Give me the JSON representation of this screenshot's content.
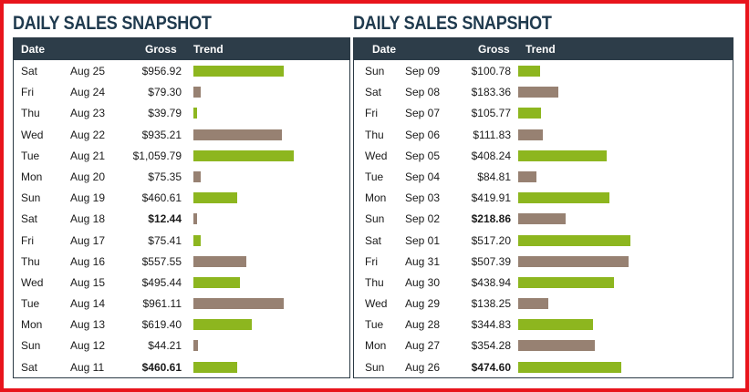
{
  "colors": {
    "increase": "#8db61f",
    "decrease": "#978172",
    "header_bg": "#2d3d49",
    "title": "#1f3a4e",
    "frame": "#e8141c"
  },
  "chart_data": [
    {
      "type": "table",
      "title": "DAILY SALES SNAPSHOT",
      "columns": [
        "Date",
        "Gross",
        "Trend"
      ],
      "rows": [
        {
          "day": "Sat",
          "date": "Aug 25",
          "gross": "$956.92",
          "value": 956.92,
          "trend": "up",
          "bold": false
        },
        {
          "day": "Fri",
          "date": "Aug 24",
          "gross": "$79.30",
          "value": 79.3,
          "trend": "down",
          "bold": false
        },
        {
          "day": "Thu",
          "date": "Aug 23",
          "gross": "$39.79",
          "value": 39.79,
          "trend": "up",
          "bold": false
        },
        {
          "day": "Wed",
          "date": "Aug 22",
          "gross": "$935.21",
          "value": 935.21,
          "trend": "down",
          "bold": false
        },
        {
          "day": "Tue",
          "date": "Aug 21",
          "gross": "$1,059.79",
          "value": 1059.79,
          "trend": "up",
          "bold": false
        },
        {
          "day": "Mon",
          "date": "Aug 20",
          "gross": "$75.35",
          "value": 75.35,
          "trend": "down",
          "bold": false
        },
        {
          "day": "Sun",
          "date": "Aug 19",
          "gross": "$460.61",
          "value": 460.61,
          "trend": "up",
          "bold": false
        },
        {
          "day": "Sat",
          "date": "Aug 18",
          "gross": "$12.44",
          "value": 12.44,
          "trend": "down",
          "bold": true
        },
        {
          "day": "Fri",
          "date": "Aug 17",
          "gross": "$75.41",
          "value": 75.41,
          "trend": "up",
          "bold": false
        },
        {
          "day": "Thu",
          "date": "Aug 16",
          "gross": "$557.55",
          "value": 557.55,
          "trend": "down",
          "bold": false
        },
        {
          "day": "Wed",
          "date": "Aug 15",
          "gross": "$495.44",
          "value": 495.44,
          "trend": "up",
          "bold": false
        },
        {
          "day": "Tue",
          "date": "Aug 14",
          "gross": "$961.11",
          "value": 961.11,
          "trend": "down",
          "bold": false
        },
        {
          "day": "Mon",
          "date": "Aug 13",
          "gross": "$619.40",
          "value": 619.4,
          "trend": "up",
          "bold": false
        },
        {
          "day": "Sun",
          "date": "Aug 12",
          "gross": "$44.21",
          "value": 44.21,
          "trend": "down",
          "bold": false
        },
        {
          "day": "Sat",
          "date": "Aug 11",
          "gross": "$460.61",
          "value": 460.61,
          "trend": "up",
          "bold": true
        }
      ]
    },
    {
      "type": "table",
      "title": "DAILY SALES SNAPSHOT",
      "columns": [
        "Date",
        "Gross",
        "Trend"
      ],
      "rows": [
        {
          "day": "Sun",
          "date": "Sep 09",
          "gross": "$100.78",
          "value": 100.78,
          "trend": "up",
          "bold": false
        },
        {
          "day": "Sat",
          "date": "Sep 08",
          "gross": "$183.36",
          "value": 183.36,
          "trend": "down",
          "bold": false
        },
        {
          "day": "Fri",
          "date": "Sep 07",
          "gross": "$105.77",
          "value": 105.77,
          "trend": "up",
          "bold": false
        },
        {
          "day": "Thu",
          "date": "Sep 06",
          "gross": "$111.83",
          "value": 111.83,
          "trend": "down",
          "bold": false
        },
        {
          "day": "Wed",
          "date": "Sep 05",
          "gross": "$408.24",
          "value": 408.24,
          "trend": "up",
          "bold": false
        },
        {
          "day": "Tue",
          "date": "Sep 04",
          "gross": "$84.81",
          "value": 84.81,
          "trend": "down",
          "bold": false
        },
        {
          "day": "Mon",
          "date": "Sep 03",
          "gross": "$419.91",
          "value": 419.91,
          "trend": "up",
          "bold": false
        },
        {
          "day": "Sun",
          "date": "Sep 02",
          "gross": "$218.86",
          "value": 218.86,
          "trend": "down",
          "bold": true
        },
        {
          "day": "Sat",
          "date": "Sep 01",
          "gross": "$517.20",
          "value": 517.2,
          "trend": "up",
          "bold": false
        },
        {
          "day": "Fri",
          "date": "Aug 31",
          "gross": "$507.39",
          "value": 507.39,
          "trend": "down",
          "bold": false
        },
        {
          "day": "Thu",
          "date": "Aug 30",
          "gross": "$438.94",
          "value": 438.94,
          "trend": "up",
          "bold": false
        },
        {
          "day": "Wed",
          "date": "Aug 29",
          "gross": "$138.25",
          "value": 138.25,
          "trend": "down",
          "bold": false
        },
        {
          "day": "Tue",
          "date": "Aug 28",
          "gross": "$344.83",
          "value": 344.83,
          "trend": "up",
          "bold": false
        },
        {
          "day": "Mon",
          "date": "Aug 27",
          "gross": "$354.28",
          "value": 354.28,
          "trend": "down",
          "bold": false
        },
        {
          "day": "Sun",
          "date": "Aug 26",
          "gross": "$474.60",
          "value": 474.6,
          "trend": "up",
          "bold": true
        }
      ]
    }
  ]
}
